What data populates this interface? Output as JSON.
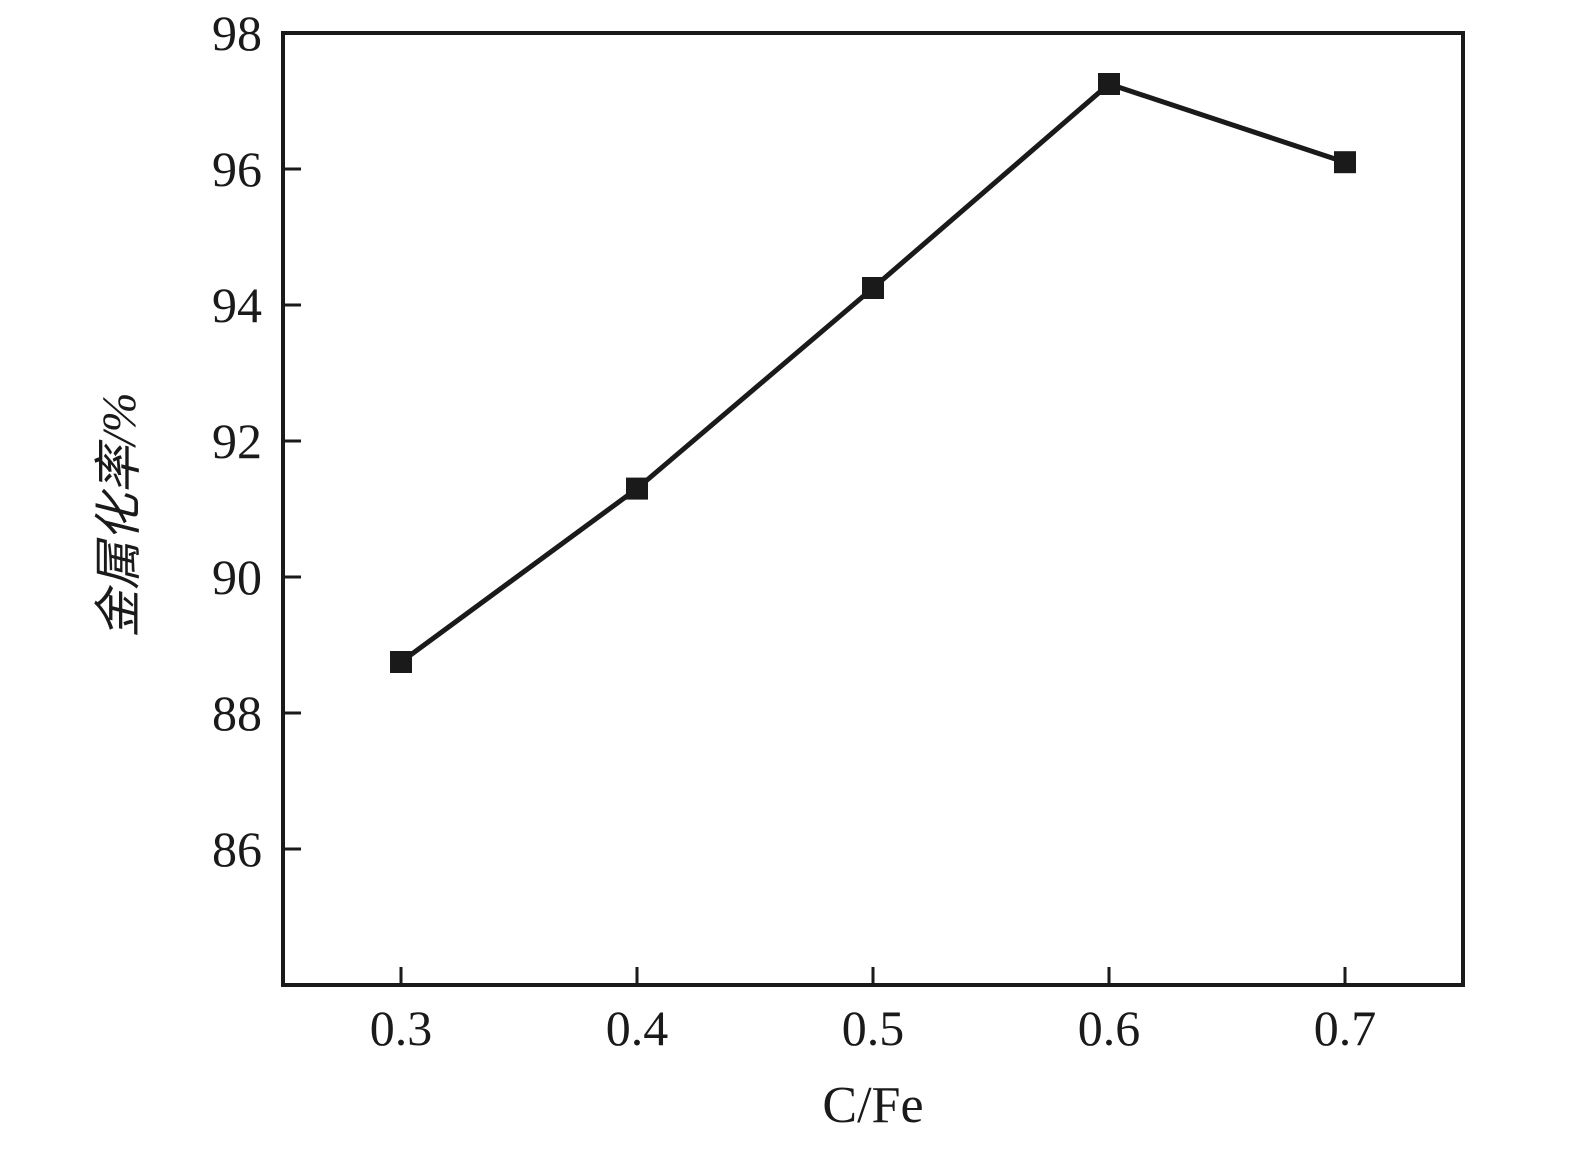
{
  "figure": {
    "background_color": "#ffffff",
    "foreground_color": "#1a1a1a"
  },
  "chart_data": {
    "type": "line",
    "title": "",
    "xlabel": "C/Fe",
    "ylabel": "金属化率/%",
    "xlim": [
      0.25,
      0.75
    ],
    "ylim": [
      84,
      98
    ],
    "grid": false,
    "legend": null,
    "axis_color": "#1a1a1a",
    "xticks": [
      {
        "v": 0.3,
        "label": "0.3"
      },
      {
        "v": 0.4,
        "label": "0.4"
      },
      {
        "v": 0.5,
        "label": "0.5"
      },
      {
        "v": 0.6,
        "label": "0.6"
      },
      {
        "v": 0.7,
        "label": "0.7"
      }
    ],
    "yticks": [
      {
        "v": 86,
        "label": "86"
      },
      {
        "v": 88,
        "label": "88"
      },
      {
        "v": 90,
        "label": "90"
      },
      {
        "v": 92,
        "label": "92"
      },
      {
        "v": 94,
        "label": "94"
      },
      {
        "v": 96,
        "label": "96"
      },
      {
        "v": 98,
        "label": "98"
      }
    ],
    "series": [
      {
        "name": "金属化率",
        "marker": "square",
        "color": "#1a1a1a",
        "x": [
          0.3,
          0.4,
          0.5,
          0.6,
          0.7
        ],
        "y": [
          88.75,
          91.3,
          94.25,
          97.25,
          96.1
        ]
      }
    ]
  }
}
